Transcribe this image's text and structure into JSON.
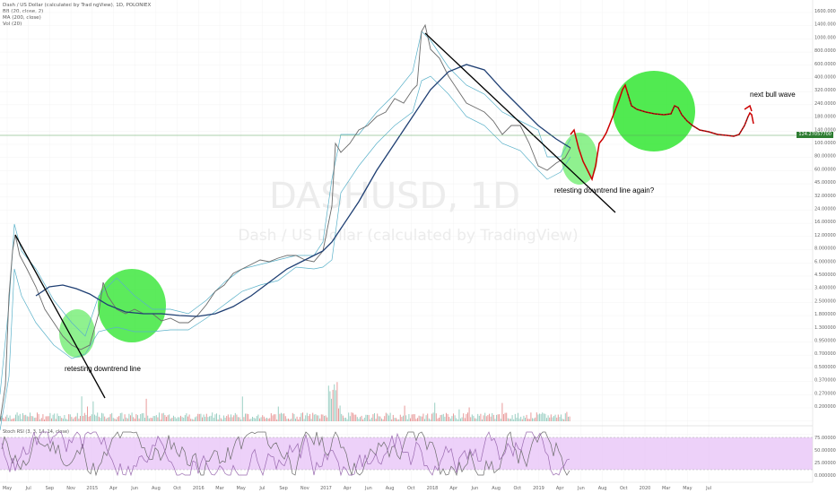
{
  "legend": {
    "line1": "Dash / US Dollar (calculated by TradingView), 1D, POLONIEX",
    "line2": "BB (20, close, 2)",
    "line3": "MA (200, close)",
    "line4": "Vol (20)"
  },
  "watermark": {
    "symbol": "DASHUSD, 1D",
    "name": "Dash / US Dollar (calculated by TradingView)"
  },
  "annotations": {
    "retest1": "retesting downtrend line",
    "retest2": "retesting downtrend line again?",
    "bull": "next bull wave"
  },
  "rsi_label": "Stoch RSI (3, 3, 14, 14, close)",
  "price_tag": "124.27057700",
  "colors": {
    "ma": "#1f3f73",
    "trend": "#000000",
    "circle": "#33e633",
    "projection": "#cc0000",
    "rsi_band": "#e8c6f7",
    "bb": "#5ab1c9"
  },
  "chart_data": {
    "type": "line",
    "y_scale": "log",
    "y_ticks": [
      "1600.000000",
      "1400.000000",
      "1000.000000",
      "800.000000",
      "600.000000",
      "400.000000",
      "320.000000",
      "240.000000",
      "180.000000",
      "140.000000",
      "100.000000",
      "80.000000",
      "60.000000",
      "45.000000",
      "32.000000",
      "24.000000",
      "16.000000",
      "12.000000",
      "8.000000",
      "6.000000",
      "4.500000",
      "3.400000",
      "2.500000",
      "1.800000",
      "1.300000",
      "0.950000",
      "0.700000",
      "0.500000",
      "0.370000",
      "0.270000",
      "0.200000"
    ],
    "x_ticks": [
      "May",
      "Jul",
      "Sep",
      "Nov",
      "2015",
      "Apr",
      "Jun",
      "Aug",
      "Oct",
      "2016",
      "Mar",
      "May",
      "Jul",
      "Sep",
      "Nov",
      "2017",
      "Apr",
      "Jun",
      "Aug",
      "Oct",
      "2018",
      "Apr",
      "Jun",
      "Aug",
      "Oct",
      "2019",
      "Apr",
      "Jun",
      "Aug",
      "Oct",
      "2020",
      "Mar",
      "May",
      "Jul"
    ],
    "rsi_ticks": [
      "75.000000",
      "50.000000",
      "25.000000",
      "0.000000"
    ]
  }
}
